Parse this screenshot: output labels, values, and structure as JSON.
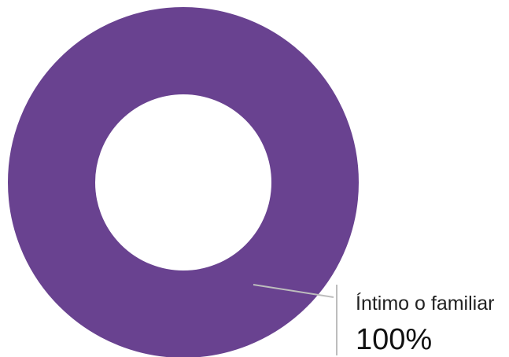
{
  "chart_data": {
    "type": "pie",
    "variant": "donut",
    "slices": [
      {
        "label": "Íntimo o familiar",
        "value": 100,
        "value_label": "100%",
        "color": "#694290"
      }
    ]
  }
}
